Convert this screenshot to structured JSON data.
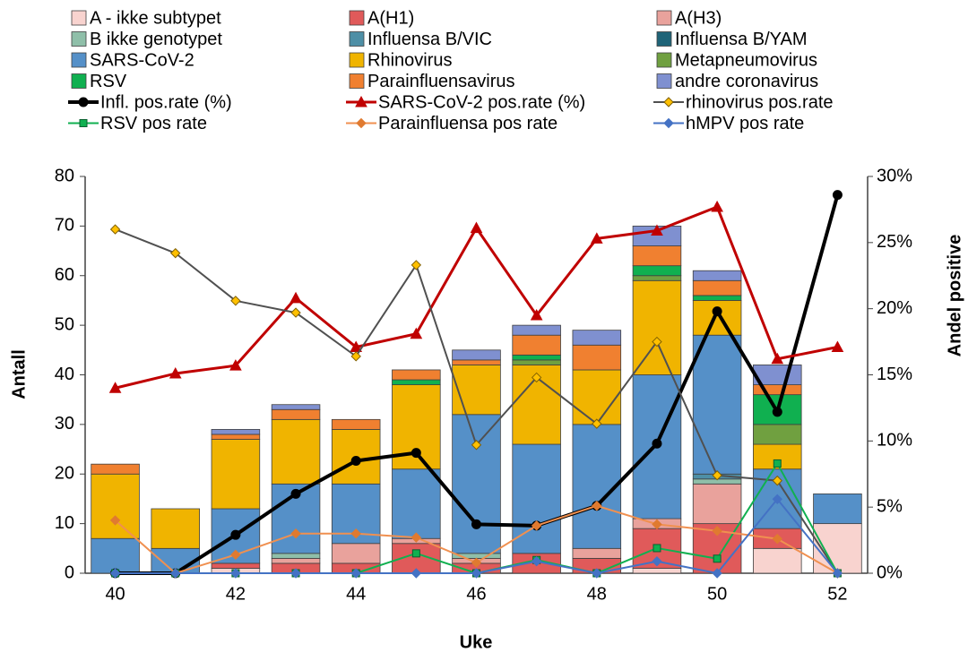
{
  "chart_data": {
    "type": "bar",
    "stacked": true,
    "x_label": "Uke",
    "y_label": "Antall",
    "y2_label": "Andel positive",
    "categories": [
      "40",
      null,
      "42",
      null,
      "44",
      null,
      "46",
      null,
      "48",
      null,
      "50",
      null,
      "52"
    ],
    "ylim": [
      0,
      80
    ],
    "yticks": [
      0,
      10,
      20,
      30,
      40,
      50,
      60,
      70,
      80
    ],
    "y2lim": [
      0,
      30
    ],
    "y2ticks": [
      {
        "value": 0,
        "label": "0%"
      },
      {
        "value": 5,
        "label": "5%"
      },
      {
        "value": 10,
        "label": "10%"
      },
      {
        "value": 15,
        "label": "15%"
      },
      {
        "value": 20,
        "label": "20%"
      },
      {
        "value": 25,
        "label": "25%"
      },
      {
        "value": 30,
        "label": "30%"
      }
    ],
    "grid": false,
    "series": [
      {
        "name": "A - ikke subtypet",
        "type": "bar",
        "color": "#f8d3cf",
        "values": [
          0,
          0,
          1,
          0,
          0,
          0,
          0,
          0,
          0,
          1,
          0,
          5,
          10
        ]
      },
      {
        "name": "A(H1)",
        "type": "bar",
        "color": "#e05a5a",
        "values": [
          0,
          0,
          1,
          2,
          2,
          6,
          2,
          4,
          3,
          8,
          10,
          4,
          0
        ]
      },
      {
        "name": "A(H3)",
        "type": "bar",
        "color": "#e9a29c",
        "values": [
          0,
          0,
          0,
          1,
          4,
          1,
          1,
          0,
          2,
          2,
          8,
          0,
          0
        ]
      },
      {
        "name": "B ikke genotypet",
        "type": "bar",
        "color": "#8fbfa9",
        "values": [
          0,
          0,
          0,
          1,
          0,
          0,
          1,
          0,
          0,
          0,
          1,
          0,
          0
        ]
      },
      {
        "name": "Influensa B/VIC",
        "type": "bar",
        "color": "#4e8fa6",
        "values": [
          0,
          0,
          0,
          0,
          0,
          0,
          0,
          0,
          0,
          0,
          1,
          0,
          0
        ]
      },
      {
        "name": "Influensa B/YAM",
        "type": "bar",
        "color": "#1f6478",
        "values": [
          0,
          0,
          0,
          0,
          0,
          0,
          0,
          0,
          0,
          0,
          0,
          0,
          0
        ]
      },
      {
        "name": "SARS-CoV-2",
        "type": "bar",
        "color": "#5590c8",
        "values": [
          7,
          5,
          11,
          14,
          12,
          14,
          28,
          22,
          25,
          29,
          28,
          12,
          6
        ]
      },
      {
        "name": "Rhinovirus",
        "type": "bar",
        "color": "#f0b400",
        "values": [
          13,
          8,
          14,
          13,
          11,
          17,
          10,
          16,
          11,
          19,
          7,
          5,
          0
        ]
      },
      {
        "name": "Metapneumovirus",
        "type": "bar",
        "color": "#70a040",
        "values": [
          0,
          0,
          0,
          0,
          0,
          0,
          0,
          1,
          0,
          1,
          0,
          4,
          0
        ]
      },
      {
        "name": "RSV",
        "type": "bar",
        "color": "#10b050",
        "values": [
          0,
          0,
          0,
          0,
          0,
          1,
          0,
          1,
          0,
          2,
          1,
          6,
          0
        ]
      },
      {
        "name": "Parainfluensavirus",
        "type": "bar",
        "color": "#f08030",
        "values": [
          2,
          0,
          1,
          2,
          2,
          2,
          1,
          4,
          5,
          4,
          3,
          2,
          0
        ]
      },
      {
        "name": "andre coronavirus",
        "type": "bar",
        "color": "#7f90d0",
        "values": [
          0,
          0,
          1,
          1,
          0,
          0,
          2,
          2,
          3,
          4,
          2,
          4,
          0
        ]
      },
      {
        "name": "Infl. pos.rate (%)",
        "type": "line",
        "axis": "y2",
        "color": "#000000",
        "marker": "circle",
        "marker_color": "#000000",
        "width": 4,
        "values": [
          0,
          0,
          2.9,
          6.0,
          8.5,
          9.1,
          3.7,
          3.6,
          5.1,
          9.8,
          19.8,
          12.2,
          28.6
        ]
      },
      {
        "name": "SARS-CoV-2 pos.rate (%)",
        "type": "line",
        "axis": "y2",
        "color": "#c00000",
        "marker": "triangle",
        "marker_color": "#c00000",
        "width": 3,
        "values": [
          14.0,
          15.1,
          15.7,
          20.8,
          17.1,
          18.1,
          26.1,
          19.5,
          25.3,
          25.9,
          27.7,
          16.2,
          17.1
        ]
      },
      {
        "name": "rhinovirus pos.rate",
        "type": "line",
        "axis": "y2",
        "color": "#505050",
        "marker": "diamond",
        "marker_color": "#ffc000",
        "width": 2,
        "values": [
          26.0,
          24.2,
          20.6,
          19.7,
          16.4,
          23.3,
          9.7,
          14.8,
          11.3,
          17.5,
          7.4,
          7.0,
          0
        ]
      },
      {
        "name": "RSV pos rate",
        "type": "line",
        "axis": "y2",
        "color": "#10b050",
        "marker": "square",
        "marker_color": "#10b050",
        "width": 2,
        "values": [
          0,
          0,
          0,
          0,
          0,
          1.5,
          0,
          1.0,
          0,
          1.9,
          1.1,
          8.3,
          0
        ]
      },
      {
        "name": "Parainfluensa pos rate",
        "type": "line",
        "axis": "y2",
        "color": "#f09050",
        "marker": "diamond",
        "marker_color": "#e07a30",
        "width": 2,
        "values": [
          4.0,
          0,
          1.4,
          3.0,
          3.0,
          2.7,
          0.8,
          3.6,
          5.1,
          3.7,
          3.2,
          2.6,
          0
        ]
      },
      {
        "name": "hMPV pos rate",
        "type": "line",
        "axis": "y2",
        "color": "#4472c4",
        "marker": "diamond",
        "marker_color": "#4472c4",
        "width": 2,
        "values": [
          0,
          0,
          0,
          0,
          0,
          0,
          0,
          0.9,
          0,
          0.9,
          0,
          5.6,
          0
        ]
      }
    ]
  }
}
